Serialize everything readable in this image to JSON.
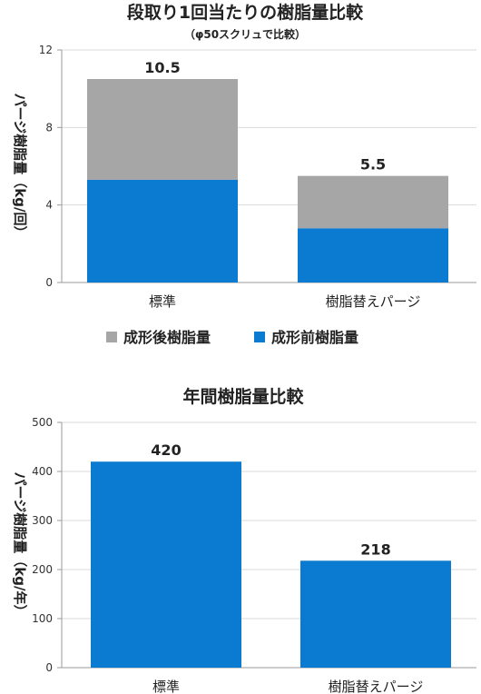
{
  "chart_data": [
    {
      "type": "bar",
      "stacked": true,
      "title": "段取り1回当たりの樹脂量比較",
      "subtitle": "（φ50スクリュで比較）",
      "ylabel": "パージ樹脂量（kg/回）",
      "ylim": [
        0,
        12
      ],
      "yticks": [
        "0",
        "4",
        "8",
        "12"
      ],
      "categories": [
        "標準",
        "樹脂替えパージ"
      ],
      "series": [
        {
          "name": "成形前樹脂量",
          "color": "#0A7BD0",
          "values": [
            5.3,
            2.8
          ]
        },
        {
          "name": "成形後樹脂量",
          "color": "#A6A6A6",
          "values": [
            5.2,
            2.7
          ]
        }
      ],
      "totals": [
        "10.5",
        "5.5"
      ],
      "legend": {
        "placement": "bottom",
        "items": [
          {
            "label": "成形後樹脂量",
            "color": "#A6A6A6"
          },
          {
            "label": "成形前樹脂量",
            "color": "#0A7BD0"
          }
        ]
      }
    },
    {
      "type": "bar",
      "title": "年間樹脂量比較",
      "ylabel": "パージ樹脂量（kg/年）",
      "ylim": [
        0,
        500
      ],
      "yticks": [
        "0",
        "100",
        "200",
        "300",
        "400",
        "500"
      ],
      "categories": [
        "標準",
        "樹脂替えパージ"
      ],
      "series": [
        {
          "color": "#0A7BD0",
          "values": [
            420,
            218
          ]
        }
      ],
      "totals": [
        "420",
        "218"
      ]
    }
  ]
}
